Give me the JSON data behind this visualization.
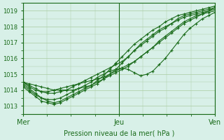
{
  "title": "",
  "xlabel": "Pression niveau de la mer( hPa )",
  "bg_color": "#d8f0e8",
  "grid_color": "#aacca0",
  "line_color": "#1a6b1a",
  "marker_color": "#1a6b1a",
  "ylim": [
    1012.5,
    1019.5
  ],
  "yticks": [
    1013,
    1014,
    1015,
    1016,
    1017,
    1018,
    1019
  ],
  "xtick_labels": [
    "Mer",
    "Jeu",
    "Ven"
  ],
  "xtick_positions": [
    0,
    48,
    96
  ],
  "xlim": [
    0,
    96
  ],
  "series": [
    [
      1014.5,
      1014.2,
      1014.0,
      1013.9,
      1013.9,
      1014.0,
      1014.1,
      1014.2,
      1014.3,
      1014.4,
      1014.5,
      1014.6,
      1014.7,
      1014.8,
      1015.0,
      1015.2,
      1015.4,
      1015.6,
      1015.8,
      1016.1,
      1016.4,
      1016.7,
      1017.0,
      1017.3,
      1017.6,
      1017.9,
      1018.2,
      1018.4,
      1018.6,
      1018.8,
      1019.0,
      1019.2
    ],
    [
      1014.3,
      1014.0,
      1013.7,
      1013.5,
      1013.4,
      1013.4,
      1013.5,
      1013.7,
      1013.9,
      1014.1,
      1014.2,
      1014.3,
      1014.5,
      1014.7,
      1014.9,
      1015.1,
      1015.3,
      1015.5,
      1015.8,
      1016.1,
      1016.4,
      1016.7,
      1017.1,
      1017.4,
      1017.7,
      1018.0,
      1018.3,
      1018.5,
      1018.7,
      1018.8,
      1018.9,
      1019.0
    ],
    [
      1014.2,
      1013.9,
      1013.6,
      1013.3,
      1013.2,
      1013.1,
      1013.2,
      1013.4,
      1013.6,
      1013.8,
      1014.0,
      1014.2,
      1014.4,
      1014.7,
      1015.0,
      1015.3,
      1015.7,
      1016.1,
      1016.5,
      1016.9,
      1017.2,
      1017.5,
      1017.8,
      1018.0,
      1018.2,
      1018.5,
      1018.7,
      1018.8,
      1018.9,
      1019.0,
      1019.1,
      1019.2
    ],
    [
      1014.4,
      1014.1,
      1013.8,
      1013.5,
      1013.3,
      1013.2,
      1013.3,
      1013.5,
      1013.7,
      1013.9,
      1014.1,
      1014.3,
      1014.6,
      1014.9,
      1015.3,
      1015.7,
      1016.1,
      1016.5,
      1016.9,
      1017.2,
      1017.5,
      1017.8,
      1018.0,
      1018.3,
      1018.5,
      1018.7,
      1018.8,
      1018.9,
      1019.0,
      1019.1,
      1019.2,
      1019.3
    ],
    [
      1014.5,
      1014.3,
      1014.1,
      1013.9,
      1013.8,
      1013.8,
      1013.9,
      1014.0,
      1014.2,
      1014.4,
      1014.6,
      1014.8,
      1015.0,
      1015.2,
      1015.4,
      1015.6,
      1015.8,
      1016.1,
      1016.5,
      1016.8,
      1017.1,
      1017.4,
      1017.7,
      1017.9,
      1018.2,
      1018.4,
      1018.6,
      1018.7,
      1018.8,
      1018.9,
      1019.0,
      1019.1
    ],
    [
      1014.5,
      1014.4,
      1014.3,
      1014.2,
      1014.1,
      1014.0,
      1014.0,
      1014.0,
      1014.0,
      1014.1,
      1014.3,
      1014.5,
      1014.8,
      1015.0,
      1015.2,
      1015.3,
      1015.4,
      1015.3,
      1015.1,
      1014.9,
      1015.0,
      1015.2,
      1015.6,
      1016.0,
      1016.5,
      1017.0,
      1017.5,
      1017.9,
      1018.2,
      1018.5,
      1018.7,
      1018.9
    ]
  ]
}
